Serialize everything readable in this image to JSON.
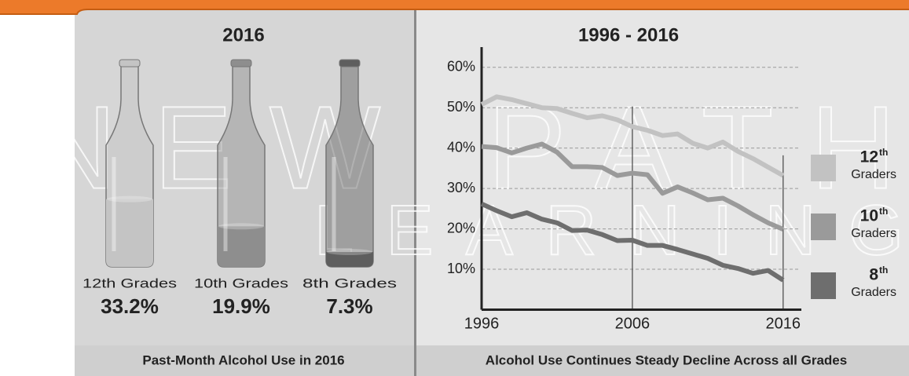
{
  "watermark": [
    "NEW PATH",
    "LEARNING"
  ],
  "chart_data": [
    {
      "type": "pictogram",
      "title": "2016",
      "categories": [
        "12th Grades",
        "10th Grades",
        "8th Grades"
      ],
      "values": [
        33.2,
        19.9,
        7.3
      ],
      "value_labels": [
        "33.2%",
        "19.9%",
        "7.3%"
      ],
      "colors": [
        "#c4c4c4",
        "#8e8e8e",
        "#5e5e5e"
      ],
      "caption": "Past-Month Alcohol Use in 2016"
    },
    {
      "type": "line",
      "title": "1996 - 2016",
      "caption": "Alcohol Use Continues Steady Decline Across all Grades",
      "x": [
        1996,
        1997,
        1998,
        1999,
        2000,
        2001,
        2002,
        2003,
        2004,
        2005,
        2006,
        2007,
        2008,
        2009,
        2010,
        2011,
        2012,
        2013,
        2014,
        2015,
        2016
      ],
      "xlim": [
        1996,
        2017
      ],
      "xticks": [
        1996,
        2006,
        2016
      ],
      "ylim": [
        0,
        65
      ],
      "yticks": [
        {
          "value": 10,
          "label": "10%"
        },
        {
          "value": 20,
          "label": "20%"
        },
        {
          "value": 30,
          "label": "30%"
        },
        {
          "value": 40,
          "label": "40%"
        },
        {
          "value": 50,
          "label": "50%"
        },
        {
          "value": 60,
          "label": "60%"
        }
      ],
      "grid": true,
      "series": [
        {
          "name": "12",
          "suffix": "th",
          "label": "Graders",
          "color": "#c2c2c2",
          "values": [
            50.8,
            52.7,
            52.0,
            51.0,
            50.0,
            49.8,
            48.6,
            47.5,
            48.0,
            47.0,
            45.3,
            44.4,
            43.1,
            43.5,
            41.2,
            40.0,
            41.5,
            39.2,
            37.4,
            35.3,
            33.2
          ]
        },
        {
          "name": "10",
          "suffix": "th",
          "label": "Graders",
          "color": "#9a9a9a",
          "values": [
            40.4,
            40.1,
            38.8,
            40.0,
            41.0,
            39.0,
            35.4,
            35.4,
            35.2,
            33.2,
            33.8,
            33.4,
            28.8,
            30.4,
            28.9,
            27.2,
            27.6,
            25.7,
            23.5,
            21.5,
            19.9
          ]
        },
        {
          "name": "8",
          "suffix": "th",
          "label": "Graders",
          "color": "#6e6e6e",
          "values": [
            26.2,
            24.5,
            23.0,
            24.0,
            22.4,
            21.5,
            19.6,
            19.7,
            18.6,
            17.1,
            17.2,
            15.9,
            15.9,
            14.9,
            13.8,
            12.7,
            11.0,
            10.2,
            9.0,
            9.7,
            7.3
          ]
        }
      ]
    }
  ]
}
